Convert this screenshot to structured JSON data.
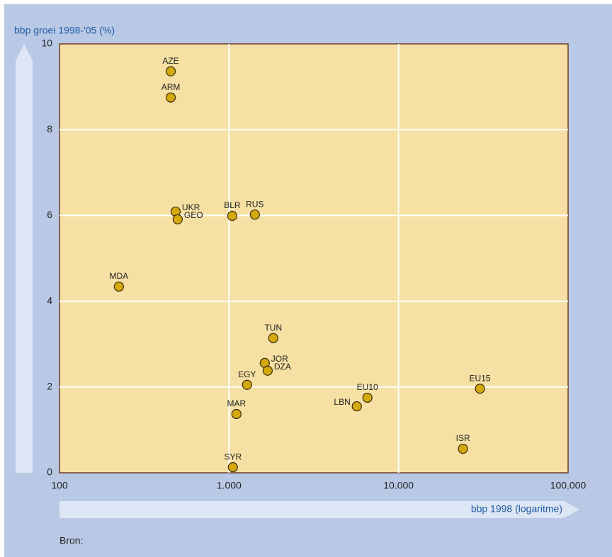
{
  "chart_data": {
    "type": "scatter",
    "title": "bbp groei 1998-'05 (%)",
    "x_label": "bbp 1998 (logaritme)",
    "source": "Bron:",
    "x_scale": "log",
    "grid": true,
    "color": "#d4a90a",
    "labels": [
      "AZE",
      "ARM",
      "UKR",
      "GEO",
      "BLR",
      "RUS",
      "MDA",
      "TUN",
      "JOR",
      "DZA",
      "EGY",
      "MAR",
      "SYR",
      "LBN",
      "EU10",
      "EU15",
      "ISR"
    ],
    "x": [
      453,
      453,
      484,
      498,
      1045,
      1420,
      224,
      1824,
      1625,
      1690,
      1277,
      1106,
      1054,
      5673,
      6550,
      30200,
      23990
    ],
    "values": [
      9.36,
      8.75,
      6.09,
      5.91,
      5.99,
      6.02,
      4.34,
      3.14,
      2.56,
      2.38,
      2.05,
      1.37,
      0.13,
      1.55,
      1.75,
      1.96,
      0.56
    ],
    "xlim": [
      100,
      100000
    ],
    "ylim": [
      0,
      10
    ],
    "xticks": [
      100,
      {
        "value": 1000,
        "label": "1.000"
      },
      {
        "value": 10000,
        "label": "10.000"
      },
      {
        "value": 100000,
        "label": "100.000"
      }
    ],
    "yticks": [
      0,
      2,
      4,
      6,
      8,
      10
    ]
  }
}
